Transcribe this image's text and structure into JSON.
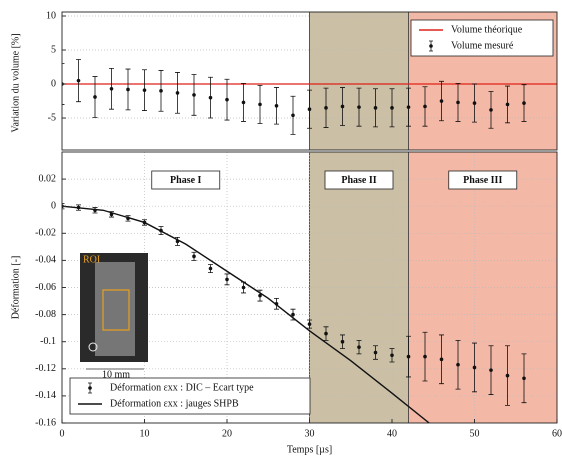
{
  "chart_data": [
    {
      "type": "errorbar",
      "ylabel": "Variation du volume [%]",
      "xlim": [
        0,
        60
      ],
      "ylim": [
        -9.7,
        10
      ],
      "yticks": [
        10,
        5,
        0,
        -5
      ],
      "grid": true,
      "legend_position": "upper right",
      "regions": [
        {
          "start": 30,
          "end": 42,
          "color": "#cbbfa6"
        },
        {
          "start": 42,
          "end": 60,
          "color": "#f4b8a6"
        }
      ],
      "series": [
        {
          "name": "Volume théorique",
          "type": "line",
          "color": "#e0201b",
          "x": [
            0,
            60
          ],
          "values": [
            0,
            0
          ]
        },
        {
          "name": "Volume mesuré",
          "type": "errorbar",
          "color": "#111",
          "x": [
            0,
            2,
            4,
            6,
            8,
            10,
            12,
            14,
            16,
            18,
            20,
            22,
            24,
            26,
            28,
            30,
            32,
            34,
            36,
            38,
            40,
            42,
            44,
            46,
            48,
            50,
            52,
            54,
            56
          ],
          "values": [
            0,
            0.5,
            -1.9,
            -0.7,
            -0.8,
            -0.9,
            -1,
            -1.3,
            -1.6,
            -2,
            -2.3,
            -2.7,
            -3,
            -3.2,
            -4.6,
            -3.7,
            -3.5,
            -3.3,
            -3.4,
            -3.5,
            -3.5,
            -3.4,
            -3.3,
            -2.5,
            -2.7,
            -2.8,
            -3.8,
            -3,
            -2.8
          ],
          "errors": [
            3,
            3.1,
            3,
            3,
            3,
            3,
            3,
            3,
            3,
            3,
            3,
            2.8,
            2.8,
            2.7,
            2.8,
            2.8,
            2.9,
            2.8,
            2.8,
            2.8,
            2.8,
            2.8,
            2.9,
            2.9,
            2.8,
            2.8,
            2.7,
            2.7,
            2.7
          ]
        }
      ]
    },
    {
      "type": "errorbar",
      "xlabel": "Temps [µs]",
      "ylabel": "Déformation [-]",
      "xlim": [
        0,
        60
      ],
      "ylim": [
        -0.16,
        0.04
      ],
      "xticks": [
        0,
        10,
        20,
        30,
        40,
        50,
        60
      ],
      "yticks": [
        0.02,
        0,
        -0.02,
        -0.04,
        -0.06,
        -0.08,
        -0.1,
        -0.12,
        -0.14,
        -0.16
      ],
      "grid": true,
      "legend_position": "lower left",
      "regions": [
        {
          "label": "Phase I",
          "start": 0,
          "end": 30,
          "color": "none"
        },
        {
          "label": "Phase II",
          "start": 30,
          "end": 42,
          "color": "#cbbfa6"
        },
        {
          "label": "Phase III",
          "start": 42,
          "end": 60,
          "color": "#f4b8a6"
        }
      ],
      "annotations": [
        "ROI",
        "10 mm"
      ],
      "series": [
        {
          "name": "Déformation εxx : DIC – Ecart type",
          "type": "errorbar",
          "color": "#111",
          "x": [
            0,
            2,
            4,
            6,
            8,
            10,
            12,
            14,
            16,
            18,
            20,
            22,
            24,
            26,
            28,
            30,
            32,
            34,
            36,
            38,
            40,
            42,
            44,
            46,
            48,
            50,
            52,
            54,
            56
          ],
          "values": [
            0,
            -0.001,
            -0.003,
            -0.006,
            -0.009,
            -0.012,
            -0.018,
            -0.026,
            -0.037,
            -0.046,
            -0.054,
            -0.06,
            -0.066,
            -0.072,
            -0.08,
            -0.087,
            -0.094,
            -0.1,
            -0.104,
            -0.108,
            -0.11,
            -0.111,
            -0.111,
            -0.113,
            -0.117,
            -0.119,
            -0.121,
            -0.125,
            -0.127
          ],
          "errors": [
            0.002,
            0.002,
            0.002,
            0.002,
            0.002,
            0.002,
            0.003,
            0.003,
            0.003,
            0.003,
            0.004,
            0.004,
            0.004,
            0.004,
            0.004,
            0.003,
            0.005,
            0.005,
            0.005,
            0.005,
            0.005,
            0.015,
            0.018,
            0.018,
            0.018,
            0.018,
            0.018,
            0.022,
            0.018
          ]
        },
        {
          "name": "Déformation εxx : jauges SHPB",
          "type": "line",
          "color": "#111",
          "x": [
            0,
            5,
            10,
            15,
            20,
            25,
            30,
            35,
            40,
            44.5
          ],
          "values": [
            0,
            -0.003,
            -0.012,
            -0.028,
            -0.048,
            -0.068,
            -0.092,
            -0.114,
            -0.138,
            -0.16
          ]
        }
      ]
    }
  ]
}
